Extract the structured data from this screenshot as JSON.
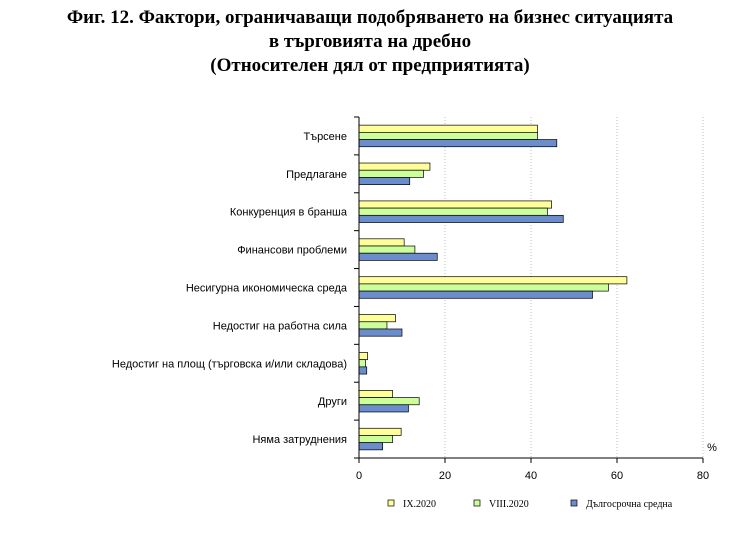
{
  "chart_data": {
    "type": "bar",
    "orientation": "horizontal",
    "title_lines": [
      "Фиг. 12. Фактори, ограничаващи подобряването на бизнес ситуацията",
      "в търговията на дребно",
      "(Относителен дял от предприятията)"
    ],
    "categories": [
      "Търсене",
      "Предлагане",
      "Конкуренция в бранша",
      "Финансови проблеми",
      "Несигурна икономическа среда",
      "Недостиг на работна сила",
      "Недостиг на площ (търговска и/или складова)",
      "Други",
      "Няма затруднения"
    ],
    "series": [
      {
        "name": "IX.2020",
        "color": "#ffff99",
        "values": [
          41.5,
          16.5,
          44.8,
          10.5,
          62.3,
          8.5,
          2.0,
          7.8,
          9.8
        ]
      },
      {
        "name": "VIII.2020",
        "color": "#ccff99",
        "values": [
          41.5,
          15.0,
          43.8,
          13.0,
          58.0,
          6.5,
          1.5,
          14.0,
          7.8
        ]
      },
      {
        "name": "Дългосрочна средна",
        "color": "#6b8dcc",
        "values": [
          46.0,
          11.8,
          47.5,
          18.2,
          54.3,
          10.0,
          1.8,
          11.5,
          5.5
        ]
      }
    ],
    "x_ticks": [
      "0",
      "20",
      "40",
      "60",
      "80"
    ],
    "xlim": [
      0,
      80
    ],
    "unit_label": "%",
    "grid": true,
    "legend_position": "bottom"
  }
}
